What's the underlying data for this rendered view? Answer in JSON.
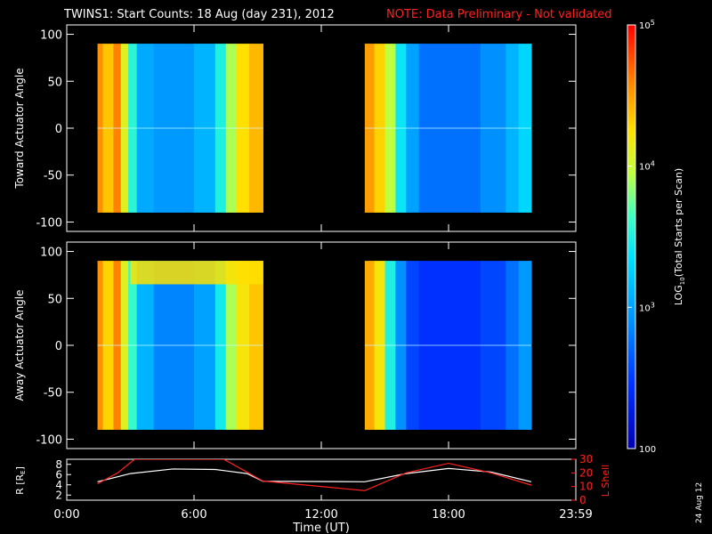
{
  "title": {
    "main": "TWINS1: Start Counts: 18 Aug (day 231), 2012",
    "note": "NOTE: Data Preliminary - Not validated"
  },
  "colors": {
    "background": "#000000",
    "axis": "#ffffff",
    "note": "#ff2020",
    "r_line": "#ffffff",
    "lshell_line": "#ff2020"
  },
  "colorbar": {
    "label_prefix": "LOG",
    "label_sub": "10",
    "label_suffix": "(Total Starts per Scan)",
    "ticks": [
      {
        "base": "10",
        "exp": "5",
        "value": 100000
      },
      {
        "base": "10",
        "exp": "4",
        "value": 10000
      },
      {
        "base": "10",
        "exp": "3",
        "value": 1000
      },
      {
        "base": "100",
        "exp": "",
        "value": 100
      }
    ],
    "range": [
      100,
      100000
    ],
    "scale": "log"
  },
  "xaxis": {
    "label": "Time (UT)",
    "ticks": [
      "0:00",
      "6:00",
      "12:00",
      "18:00",
      "23:59"
    ],
    "tick_hours": [
      0,
      6,
      12,
      18,
      24
    ],
    "range_hours": [
      0,
      24
    ]
  },
  "panels": [
    {
      "id": "toward",
      "ylabel": "Toward Actuator Angle",
      "ticks": [
        "100",
        "50",
        "0",
        "-50",
        "-100"
      ],
      "ylim": [
        -110,
        110
      ]
    },
    {
      "id": "away",
      "ylabel": "Away Actuator Angle",
      "ticks": [
        "100",
        "50",
        "0",
        "-50",
        "-100"
      ],
      "ylim": [
        -110,
        110
      ]
    }
  ],
  "orbit_panel": {
    "left_label_main": "R [R",
    "left_label_sub": "E",
    "left_label_end": "]",
    "left_ticks": [
      "8",
      "6",
      "4",
      "2"
    ],
    "left_range": [
      1,
      9
    ],
    "right_label": "L Shell",
    "right_ticks": [
      "30",
      "20",
      "10",
      "0"
    ],
    "right_range": [
      0,
      30
    ]
  },
  "date_stamp": "24 Aug 12",
  "chart_data": {
    "type": "heatmap",
    "title": "TWINS1: Start Counts: 18 Aug (day 231), 2012",
    "xlabel": "Time (UT)",
    "xlim_hours": [
      0,
      24
    ],
    "angle_range_deg": [
      -90,
      90
    ],
    "color_scale": "log10 counts, 100 to 100000",
    "data_intervals_hours": [
      [
        1.45,
        9.25
      ],
      [
        14.05,
        21.9
      ]
    ],
    "toward_log10": [
      {
        "t0": 1.45,
        "t1": 1.7,
        "v": 4.55
      },
      {
        "t0": 1.7,
        "t1": 2.2,
        "v": 4.35
      },
      {
        "t0": 2.2,
        "t1": 2.55,
        "v": 4.6
      },
      {
        "t0": 2.55,
        "t1": 2.9,
        "v": 4.1
      },
      {
        "t0": 2.9,
        "t1": 3.3,
        "v": 3.55
      },
      {
        "t0": 3.3,
        "t1": 4.1,
        "v": 3.05
      },
      {
        "t0": 4.1,
        "t1": 6.0,
        "v": 2.95
      },
      {
        "t0": 6.0,
        "t1": 7.0,
        "v": 3.1
      },
      {
        "t0": 7.0,
        "t1": 7.5,
        "v": 3.5
      },
      {
        "t0": 7.5,
        "t1": 8.0,
        "v": 3.9
      },
      {
        "t0": 8.0,
        "t1": 8.6,
        "v": 4.25
      },
      {
        "t0": 8.6,
        "t1": 9.25,
        "v": 4.4
      },
      {
        "t0": 14.05,
        "t1": 14.5,
        "v": 4.5
      },
      {
        "t0": 14.5,
        "t1": 15.0,
        "v": 4.3
      },
      {
        "t0": 15.0,
        "t1": 15.5,
        "v": 3.95
      },
      {
        "t0": 15.5,
        "t1": 16.0,
        "v": 3.4
      },
      {
        "t0": 16.0,
        "t1": 16.6,
        "v": 3.0
      },
      {
        "t0": 16.6,
        "t1": 19.5,
        "v": 2.75
      },
      {
        "t0": 19.5,
        "t1": 20.7,
        "v": 2.9
      },
      {
        "t0": 20.7,
        "t1": 21.3,
        "v": 3.1
      },
      {
        "t0": 21.3,
        "t1": 21.9,
        "v": 3.3
      }
    ],
    "away_log10": [
      {
        "t0": 1.45,
        "t1": 1.7,
        "v": 4.55
      },
      {
        "t0": 1.7,
        "t1": 2.2,
        "v": 4.3
      },
      {
        "t0": 2.2,
        "t1": 2.55,
        "v": 4.6
      },
      {
        "t0": 2.55,
        "t1": 2.9,
        "v": 4.1
      },
      {
        "t0": 2.9,
        "t1": 3.3,
        "v": 3.6
      },
      {
        "t0": 3.3,
        "t1": 4.1,
        "v": 3.1
      },
      {
        "t0": 4.1,
        "t1": 6.0,
        "v": 2.85
      },
      {
        "t0": 6.0,
        "t1": 7.0,
        "v": 3.0
      },
      {
        "t0": 7.0,
        "t1": 7.5,
        "v": 3.45
      },
      {
        "t0": 7.5,
        "t1": 8.0,
        "v": 3.9
      },
      {
        "t0": 8.0,
        "t1": 8.6,
        "v": 4.2
      },
      {
        "t0": 8.6,
        "t1": 9.25,
        "v": 4.35
      },
      {
        "t0": 14.05,
        "t1": 14.5,
        "v": 4.45
      },
      {
        "t0": 14.5,
        "t1": 15.0,
        "v": 4.2
      },
      {
        "t0": 15.0,
        "t1": 15.5,
        "v": 3.5
      },
      {
        "t0": 15.5,
        "t1": 16.0,
        "v": 2.9
      },
      {
        "t0": 16.0,
        "t1": 16.6,
        "v": 2.55
      },
      {
        "t0": 16.6,
        "t1": 19.5,
        "v": 2.45
      },
      {
        "t0": 19.5,
        "t1": 20.7,
        "v": 2.55
      },
      {
        "t0": 20.7,
        "t1": 21.3,
        "v": 2.75
      },
      {
        "t0": 21.3,
        "t1": 21.9,
        "v": 2.95
      }
    ],
    "away_high_angle_feature": {
      "t0": 3.0,
      "t1": 9.25,
      "angle_from": 65,
      "angle_to": 90,
      "v": 4.25
    },
    "orbit": {
      "r_re": [
        {
          "t": 1.45,
          "v": 4.6
        },
        {
          "t": 3.0,
          "v": 6.2
        },
        {
          "t": 5.0,
          "v": 7.1
        },
        {
          "t": 7.0,
          "v": 7.0
        },
        {
          "t": 8.5,
          "v": 6.2
        },
        {
          "t": 9.25,
          "v": 4.7
        },
        {
          "t": 14.05,
          "v": 4.6
        },
        {
          "t": 16.0,
          "v": 6.2
        },
        {
          "t": 18.0,
          "v": 7.2
        },
        {
          "t": 20.0,
          "v": 6.5
        },
        {
          "t": 21.9,
          "v": 4.6
        }
      ],
      "l_shell": [
        {
          "t": 1.45,
          "v": 12
        },
        {
          "t": 2.4,
          "v": 20
        },
        {
          "t": 3.2,
          "v": 30
        },
        {
          "t": 7.4,
          "v": 30
        },
        {
          "t": 9.25,
          "v": 14
        },
        {
          "t": 14.05,
          "v": 7
        },
        {
          "t": 16.0,
          "v": 20
        },
        {
          "t": 18.0,
          "v": 27
        },
        {
          "t": 20.0,
          "v": 20
        },
        {
          "t": 21.9,
          "v": 11
        }
      ]
    }
  }
}
